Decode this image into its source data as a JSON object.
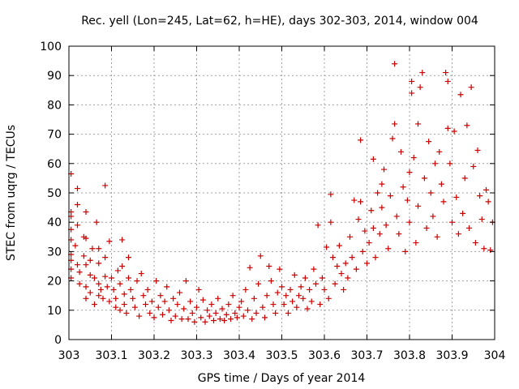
{
  "chart_data": {
    "type": "scatter",
    "title": "Rec. yell (Lon=245, Lat=62, h=HE), days 302-303, 2014, window 004",
    "xlabel": "GPS time / Days of year 2014",
    "ylabel": "STEC from uqrg / TECUs",
    "xlim": [
      303,
      304
    ],
    "ylim": [
      0,
      100
    ],
    "xticks": [
      303,
      303.1,
      303.2,
      303.3,
      303.4,
      303.5,
      303.6,
      303.7,
      303.8,
      303.9,
      304
    ],
    "xtick_labels": [
      "303",
      "303.1",
      "303.2",
      "303.3",
      "303.4",
      "303.5",
      "303.6",
      "303.7",
      "303.8",
      "303.9",
      "304"
    ],
    "yticks": [
      0,
      10,
      20,
      30,
      40,
      50,
      60,
      70,
      80,
      90,
      100
    ],
    "ytick_labels": [
      "0",
      "10",
      "20",
      "30",
      "40",
      "50",
      "60",
      "70",
      "80",
      "90",
      "100"
    ],
    "grid": true,
    "marker": "plus",
    "color": "#cc0000",
    "series": [
      {
        "points": [
          [
            303.005,
            56.5
          ],
          [
            303.005,
            43.5
          ],
          [
            303.005,
            42
          ],
          [
            303.005,
            37.5
          ],
          [
            303.005,
            34
          ],
          [
            303.005,
            29
          ],
          [
            303.005,
            27
          ],
          [
            303.005,
            24
          ],
          [
            303.005,
            21
          ],
          [
            303.015,
            32
          ],
          [
            303.02,
            51.5
          ],
          [
            303.02,
            46
          ],
          [
            303.02,
            39
          ],
          [
            303.02,
            25.5
          ],
          [
            303.025,
            23
          ],
          [
            303.025,
            19
          ],
          [
            303.035,
            35
          ],
          [
            303.035,
            28.5
          ],
          [
            303.04,
            43.5
          ],
          [
            303.04,
            34.5
          ],
          [
            303.04,
            25.5
          ],
          [
            303.04,
            18
          ],
          [
            303.04,
            14
          ],
          [
            303.05,
            27
          ],
          [
            303.05,
            22
          ],
          [
            303.05,
            16
          ],
          [
            303.055,
            31
          ],
          [
            303.06,
            21
          ],
          [
            303.06,
            12
          ],
          [
            303.065,
            40
          ],
          [
            303.07,
            31
          ],
          [
            303.07,
            26
          ],
          [
            303.07,
            19
          ],
          [
            303.07,
            15
          ],
          [
            303.075,
            17
          ],
          [
            303.08,
            14
          ],
          [
            303.085,
            52.5
          ],
          [
            303.085,
            28
          ],
          [
            303.085,
            21.5
          ],
          [
            303.09,
            18
          ],
          [
            303.095,
            33.5
          ],
          [
            303.095,
            13
          ],
          [
            303.1,
            21
          ],
          [
            303.105,
            17
          ],
          [
            303.11,
            14
          ],
          [
            303.11,
            11
          ],
          [
            303.115,
            23.5
          ],
          [
            303.12,
            19
          ],
          [
            303.12,
            10
          ],
          [
            303.125,
            34
          ],
          [
            303.125,
            25
          ],
          [
            303.13,
            15.5
          ],
          [
            303.13,
            12
          ],
          [
            303.135,
            9
          ],
          [
            303.14,
            28
          ],
          [
            303.14,
            21
          ],
          [
            303.145,
            17
          ],
          [
            303.15,
            14
          ],
          [
            303.155,
            11
          ],
          [
            303.16,
            20
          ],
          [
            303.165,
            8
          ],
          [
            303.17,
            22.5
          ],
          [
            303.175,
            15
          ],
          [
            303.18,
            12
          ],
          [
            303.185,
            17
          ],
          [
            303.19,
            9
          ],
          [
            303.195,
            13
          ],
          [
            303.2,
            7.5
          ],
          [
            303.205,
            20
          ],
          [
            303.21,
            11
          ],
          [
            303.215,
            15
          ],
          [
            303.22,
            8.5
          ],
          [
            303.225,
            13
          ],
          [
            303.23,
            18
          ],
          [
            303.235,
            10
          ],
          [
            303.24,
            6.5
          ],
          [
            303.245,
            14
          ],
          [
            303.25,
            8
          ],
          [
            303.255,
            12
          ],
          [
            303.26,
            16
          ],
          [
            303.265,
            7
          ],
          [
            303.27,
            10.5
          ],
          [
            303.275,
            20
          ],
          [
            303.28,
            7
          ],
          [
            303.285,
            13
          ],
          [
            303.29,
            9
          ],
          [
            303.295,
            6
          ],
          [
            303.3,
            11
          ],
          [
            303.305,
            17
          ],
          [
            303.31,
            7.5
          ],
          [
            303.315,
            13.5
          ],
          [
            303.32,
            6
          ],
          [
            303.325,
            10
          ],
          [
            303.33,
            8
          ],
          [
            303.335,
            12
          ],
          [
            303.34,
            6.5
          ],
          [
            303.345,
            9
          ],
          [
            303.35,
            14
          ],
          [
            303.355,
            7
          ],
          [
            303.36,
            10.5
          ],
          [
            303.365,
            6.5
          ],
          [
            303.37,
            8.5
          ],
          [
            303.375,
            12
          ],
          [
            303.38,
            7
          ],
          [
            303.385,
            15
          ],
          [
            303.39,
            9
          ],
          [
            303.395,
            7.5
          ],
          [
            303.4,
            11
          ],
          [
            303.405,
            13
          ],
          [
            303.41,
            8
          ],
          [
            303.415,
            17
          ],
          [
            303.42,
            10
          ],
          [
            303.425,
            24.5
          ],
          [
            303.43,
            7
          ],
          [
            303.435,
            14
          ],
          [
            303.44,
            9
          ],
          [
            303.445,
            19
          ],
          [
            303.45,
            28.5
          ],
          [
            303.455,
            11
          ],
          [
            303.46,
            7.5
          ],
          [
            303.465,
            15
          ],
          [
            303.47,
            25
          ],
          [
            303.475,
            20
          ],
          [
            303.48,
            12
          ],
          [
            303.485,
            9
          ],
          [
            303.49,
            16
          ],
          [
            303.495,
            24
          ],
          [
            303.5,
            18
          ],
          [
            303.505,
            12
          ],
          [
            303.51,
            15
          ],
          [
            303.515,
            9
          ],
          [
            303.52,
            17
          ],
          [
            303.525,
            13
          ],
          [
            303.53,
            22
          ],
          [
            303.535,
            11
          ],
          [
            303.54,
            15
          ],
          [
            303.545,
            18
          ],
          [
            303.55,
            14
          ],
          [
            303.555,
            21
          ],
          [
            303.56,
            10.5
          ],
          [
            303.565,
            17
          ],
          [
            303.57,
            13
          ],
          [
            303.575,
            24
          ],
          [
            303.58,
            19
          ],
          [
            303.585,
            39
          ],
          [
            303.59,
            12
          ],
          [
            303.595,
            21
          ],
          [
            303.6,
            17
          ],
          [
            303.605,
            31.5
          ],
          [
            303.61,
            14
          ],
          [
            303.615,
            40
          ],
          [
            303.615,
            49.5
          ],
          [
            303.62,
            28
          ],
          [
            303.625,
            19
          ],
          [
            303.63,
            25
          ],
          [
            303.635,
            32
          ],
          [
            303.64,
            22.5
          ],
          [
            303.645,
            17
          ],
          [
            303.65,
            26
          ],
          [
            303.655,
            21
          ],
          [
            303.66,
            35
          ],
          [
            303.665,
            28
          ],
          [
            303.67,
            47.5
          ],
          [
            303.675,
            24
          ],
          [
            303.68,
            41
          ],
          [
            303.685,
            68
          ],
          [
            303.685,
            47
          ],
          [
            303.69,
            30
          ],
          [
            303.695,
            37
          ],
          [
            303.7,
            26
          ],
          [
            303.705,
            33
          ],
          [
            303.71,
            44
          ],
          [
            303.715,
            38
          ],
          [
            303.715,
            61.5
          ],
          [
            303.72,
            28
          ],
          [
            303.725,
            50
          ],
          [
            303.73,
            36
          ],
          [
            303.735,
            53
          ],
          [
            303.735,
            45
          ],
          [
            303.74,
            58
          ],
          [
            303.745,
            39
          ],
          [
            303.75,
            31
          ],
          [
            303.755,
            49
          ],
          [
            303.76,
            68.5
          ],
          [
            303.765,
            94
          ],
          [
            303.765,
            73.5
          ],
          [
            303.77,
            42
          ],
          [
            303.775,
            36
          ],
          [
            303.78,
            64
          ],
          [
            303.785,
            52
          ],
          [
            303.79,
            30
          ],
          [
            303.795,
            47.5
          ],
          [
            303.8,
            57
          ],
          [
            303.8,
            40
          ],
          [
            303.805,
            84
          ],
          [
            303.805,
            88
          ],
          [
            303.81,
            62
          ],
          [
            303.815,
            33
          ],
          [
            303.82,
            73.5
          ],
          [
            303.82,
            45.5
          ],
          [
            303.825,
            86
          ],
          [
            303.83,
            91
          ],
          [
            303.835,
            55
          ],
          [
            303.84,
            38
          ],
          [
            303.845,
            67.5
          ],
          [
            303.85,
            50
          ],
          [
            303.855,
            42
          ],
          [
            303.86,
            60
          ],
          [
            303.865,
            35
          ],
          [
            303.87,
            64
          ],
          [
            303.875,
            53
          ],
          [
            303.88,
            47
          ],
          [
            303.885,
            91
          ],
          [
            303.89,
            72
          ],
          [
            303.89,
            88
          ],
          [
            303.895,
            60
          ],
          [
            303.9,
            40
          ],
          [
            303.905,
            71
          ],
          [
            303.91,
            48.5
          ],
          [
            303.915,
            36
          ],
          [
            303.92,
            83.5
          ],
          [
            303.925,
            43
          ],
          [
            303.93,
            55
          ],
          [
            303.935,
            73
          ],
          [
            303.94,
            38
          ],
          [
            303.945,
            86
          ],
          [
            303.95,
            59
          ],
          [
            303.955,
            33
          ],
          [
            303.96,
            64.5
          ],
          [
            303.965,
            49
          ],
          [
            303.97,
            41
          ],
          [
            303.975,
            31
          ],
          [
            303.98,
            51
          ],
          [
            303.985,
            47
          ],
          [
            303.99,
            30.5
          ],
          [
            303.995,
            40
          ]
        ]
      }
    ]
  }
}
